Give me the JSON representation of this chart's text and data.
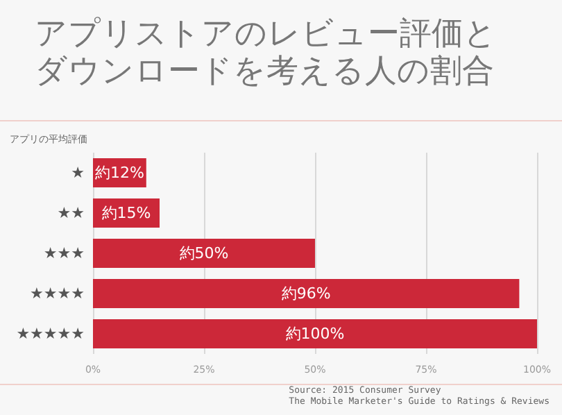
{
  "chart_data": {
    "type": "bar",
    "orientation": "horizontal",
    "title": "アプリストアのレビュー評価とダウンロードを考える人の割合",
    "ylabel": "アプリの平均評価",
    "categories": [
      "★",
      "★★",
      "★★★",
      "★★★★",
      "★★★★★"
    ],
    "values": [
      12,
      15,
      50,
      96,
      100
    ],
    "color": "#cc2839",
    "value_labels": [
      "約12%",
      "約15%",
      "約50%",
      "約96%",
      "約100%"
    ],
    "xlim": [
      0,
      100
    ],
    "xticks": [
      {
        "value": 0,
        "label": "0%"
      },
      {
        "value": 25,
        "label": "25%"
      },
      {
        "value": 50,
        "label": "50%"
      },
      {
        "value": 75,
        "label": "75%"
      },
      {
        "value": 100,
        "label": "100%"
      }
    ],
    "grid": "x",
    "annotations": [
      "Source: 2015 Consumer Survey\nThe Mobile Marketer's Guide to Ratings & Reviews"
    ]
  }
}
